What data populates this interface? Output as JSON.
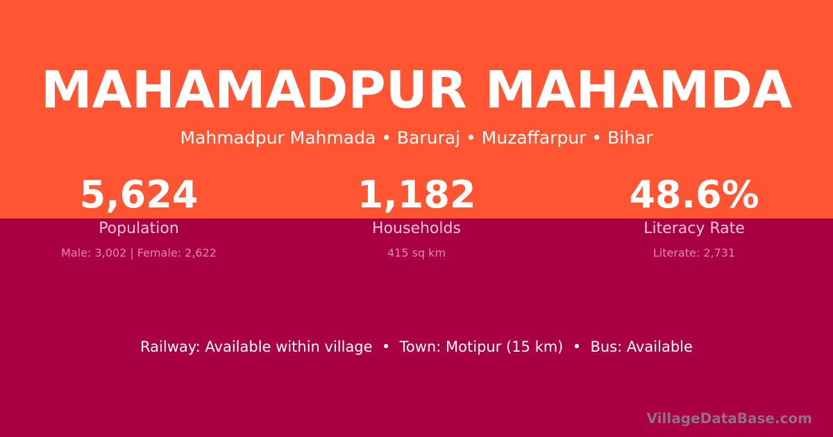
{
  "colors": {
    "top_background": "#FF5533",
    "bottom_background": "#A80042"
  },
  "title": "MAHAMADPUR MAHAMDA",
  "subtitle": "Mahmadpur Mahmada • Baruraj • Muzaffarpur • Bihar",
  "stats": [
    {
      "value": "5,624",
      "label": "Population",
      "sub": "Male: 3,002 | Female: 2,622"
    },
    {
      "value": "1,182",
      "label": "Households",
      "sub": "415 sq km"
    },
    {
      "value": "48.6%",
      "label": "Literacy Rate",
      "sub": "Literate: 2,731"
    }
  ],
  "transport": "Railway: Available within village  •  Town: Motipur (15 km)  •  Bus: Available",
  "brand": "VillageDataBase.com"
}
